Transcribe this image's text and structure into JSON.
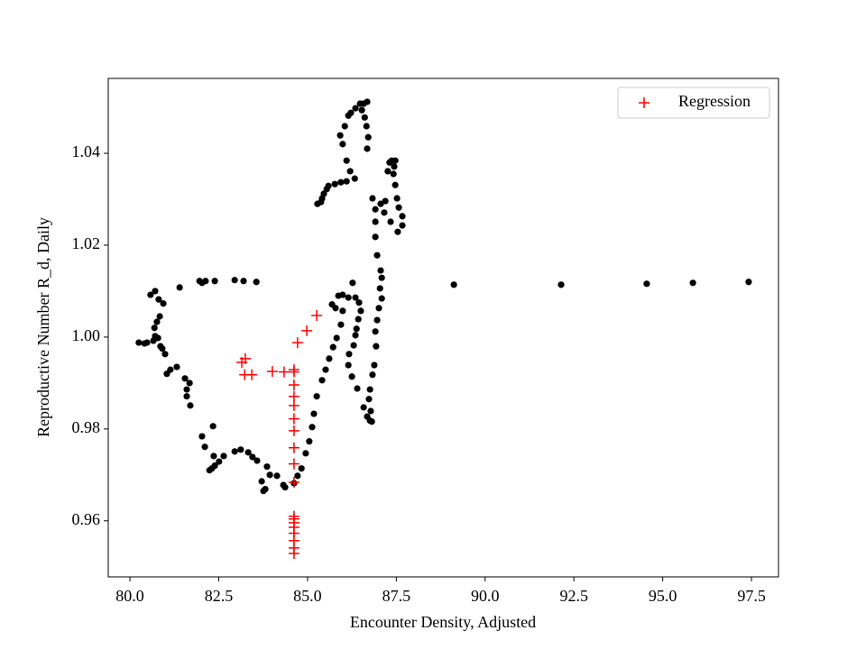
{
  "chart_data": {
    "type": "scatter",
    "x_label": "Encounter Density, Adjusted",
    "y_label": "Reproductive Number R_d, Daily",
    "xlim": [
      79.39,
      98.26
    ],
    "ylim": [
      0.9478,
      1.0563
    ],
    "xticks": [
      {
        "value": 80,
        "label": "80.0"
      },
      82.5,
      {
        "value": 85,
        "label": "85.0"
      },
      87.5,
      {
        "value": 90,
        "label": "90.0"
      },
      92.5,
      {
        "value": 95,
        "label": "95.0"
      },
      97.5
    ],
    "yticks": [
      0.96,
      0.98,
      {
        "value": 1,
        "label": "1.00"
      },
      1.02,
      1.04
    ],
    "grid": false,
    "legend": "upper right",
    "series": [
      {
        "color": "#000000",
        "marker": "o",
        "x": [
          89.12,
          92.14,
          94.55,
          95.85,
          97.42,
          81.4,
          81.96,
          82.03,
          82.13,
          82.39,
          82.95,
          83.2,
          83.56,
          80.58,
          80.71,
          80.81,
          80.94,
          80.84,
          80.76,
          80.69,
          80.71,
          80.66,
          80.41,
          80.25,
          80.48,
          80.79,
          80.86,
          80.91,
          80.99,
          81.04,
          81.14,
          81.32,
          81.55,
          81.6,
          81.68,
          81.6,
          81.7,
          82.03,
          82.11,
          82.34,
          82.36,
          82.24,
          82.31,
          82.39,
          82.51,
          82.64,
          82.95,
          83.12,
          83.33,
          83.45,
          83.58,
          83.86,
          83.94,
          83.71,
          83.76,
          83.81,
          84.14,
          84.32,
          84.37,
          84.62,
          84.72,
          84.83,
          84.95,
          85.05,
          85.13,
          85.18,
          85.26,
          85.41,
          85.51,
          85.61,
          85.72,
          85.82,
          85.94,
          85.99,
          85.69,
          85.79,
          85.87,
          85.99,
          86.15,
          86.27,
          86.35,
          86.45,
          86.5,
          86.43,
          86.38,
          86.35,
          86.3,
          86.17,
          86.15,
          86.25,
          86.4,
          86.58,
          86.68,
          86.76,
          86.81,
          86.78,
          86.73,
          86.76,
          86.83,
          86.88,
          86.93,
          86.91,
          86.96,
          87.01,
          87.09,
          87.04,
          87.09,
          87.06,
          86.96,
          86.91,
          86.91,
          86.91,
          86.83,
          87.06,
          87.19,
          87.16,
          87.34,
          87.54,
          87.67,
          87.67,
          87.57,
          87.52,
          87.47,
          87.44,
          87.31,
          87.26,
          87.37,
          87.47,
          87.42,
          86.68,
          86.71,
          86.66,
          86.61,
          86.53,
          86.58,
          86.68,
          86.48,
          86.35,
          86.22,
          86.15,
          86.05,
          85.92,
          85.99,
          86.1,
          86.2,
          86.33,
          86.1,
          85.94,
          85.77,
          85.59,
          85.54,
          85.46,
          85.41,
          85.28,
          85.38
        ],
        "values": [
          1.0114,
          1.0114,
          1.0116,
          1.0118,
          1.012,
          1.0108,
          1.0122,
          1.0118,
          1.0122,
          1.0122,
          1.0124,
          1.0122,
          1.012,
          1.0092,
          1.01,
          1.0082,
          1.0073,
          1.0045,
          1.0033,
          1.002,
          1.0002,
          0.9992,
          0.9986,
          0.9988,
          0.9988,
          0.9998,
          0.998,
          0.9975,
          0.9963,
          0.992,
          0.9929,
          0.9935,
          0.991,
          0.9886,
          0.99,
          0.9871,
          0.9851,
          0.9784,
          0.9761,
          0.9806,
          0.9741,
          0.971,
          0.9714,
          0.972,
          0.9729,
          0.9741,
          0.9751,
          0.9755,
          0.9749,
          0.9739,
          0.9731,
          0.9718,
          0.97,
          0.9686,
          0.9665,
          0.9669,
          0.9698,
          0.9678,
          0.9673,
          0.9682,
          0.9698,
          0.9714,
          0.9747,
          0.9773,
          0.9804,
          0.9833,
          0.9871,
          0.9906,
          0.9929,
          0.9953,
          0.9978,
          0.9998,
          1.0027,
          1.0057,
          1.0071,
          1.0063,
          1.009,
          1.0092,
          1.0086,
          1.0118,
          1.0086,
          1.0075,
          1.0057,
          1.0039,
          1.0018,
          1.0004,
          0.9982,
          0.9963,
          0.9939,
          0.9914,
          0.9888,
          0.9847,
          0.9827,
          0.9818,
          0.9816,
          0.9839,
          0.9865,
          0.9886,
          0.9918,
          0.9939,
          0.998,
          1.0012,
          1.0037,
          1.0063,
          1.0084,
          1.0106,
          1.0129,
          1.0145,
          1.0178,
          1.0218,
          1.0251,
          1.0278,
          1.0302,
          1.029,
          1.0296,
          1.0271,
          1.0251,
          1.0229,
          1.0243,
          1.0263,
          1.0282,
          1.0302,
          1.0331,
          1.0371,
          1.038,
          1.0361,
          1.0384,
          1.0384,
          1.0355,
          1.041,
          1.0435,
          1.0459,
          1.0478,
          1.0494,
          1.0508,
          1.0512,
          1.0508,
          1.0498,
          1.0488,
          1.0482,
          1.0459,
          1.0439,
          1.042,
          1.0384,
          1.0361,
          1.0345,
          1.0339,
          1.0337,
          1.0333,
          1.0329,
          1.0322,
          1.0312,
          1.0302,
          1.029,
          1.0294
        ]
      },
      {
        "name": "Regression",
        "color": "#ff0000",
        "marker": "+",
        "x": [
          84.62,
          84.62,
          84.62,
          84.62,
          84.62,
          84.62,
          84.62,
          84.62,
          84.62,
          84.62,
          84.62,
          84.62,
          84.62,
          84.62,
          84.62,
          84.62,
          84.62,
          84.62,
          84.34,
          84.01,
          83.43,
          83.23,
          83.15,
          83.25,
          84.72,
          84.98,
          85.26
        ],
        "values": [
          0.9529,
          0.9541,
          0.9557,
          0.9573,
          0.9586,
          0.9596,
          0.9604,
          0.961,
          0.9684,
          0.9724,
          0.9759,
          0.9796,
          0.9822,
          0.9851,
          0.9871,
          0.9896,
          0.9924,
          0.9929,
          0.9924,
          0.9925,
          0.9918,
          0.9918,
          0.9945,
          0.9953,
          0.9988,
          1.0014,
          1.0047
        ]
      }
    ]
  }
}
